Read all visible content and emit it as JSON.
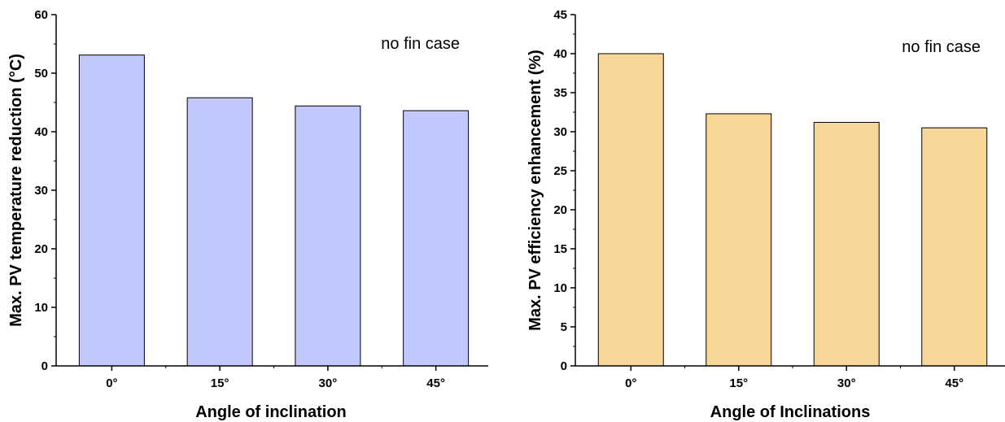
{
  "chart_data": [
    {
      "type": "bar",
      "categories": [
        "0°",
        "15°",
        "30°",
        "45°"
      ],
      "values": [
        53.1,
        45.8,
        44.4,
        43.6
      ],
      "xlabel": "Angle of inclination",
      "ylabel": "Max. PV temperature reduction (°C)",
      "ylim": [
        0,
        60
      ],
      "yticks": [
        0,
        10,
        20,
        30,
        40,
        50,
        60
      ],
      "annotation": "no fin case",
      "bar_color": "#c0c8fc",
      "grid": false
    },
    {
      "type": "bar",
      "categories": [
        "0°",
        "15°",
        "30°",
        "45°"
      ],
      "values": [
        40.0,
        32.3,
        31.2,
        30.5
      ],
      "xlabel": "Angle of Inclinations",
      "ylabel": "Max. PV efficiency enhancement (%)",
      "ylim": [
        0,
        45
      ],
      "yticks": [
        0,
        5,
        10,
        15,
        20,
        25,
        30,
        35,
        40,
        45
      ],
      "annotation": "no fin case",
      "bar_color": "#f7d697",
      "grid": false
    }
  ]
}
